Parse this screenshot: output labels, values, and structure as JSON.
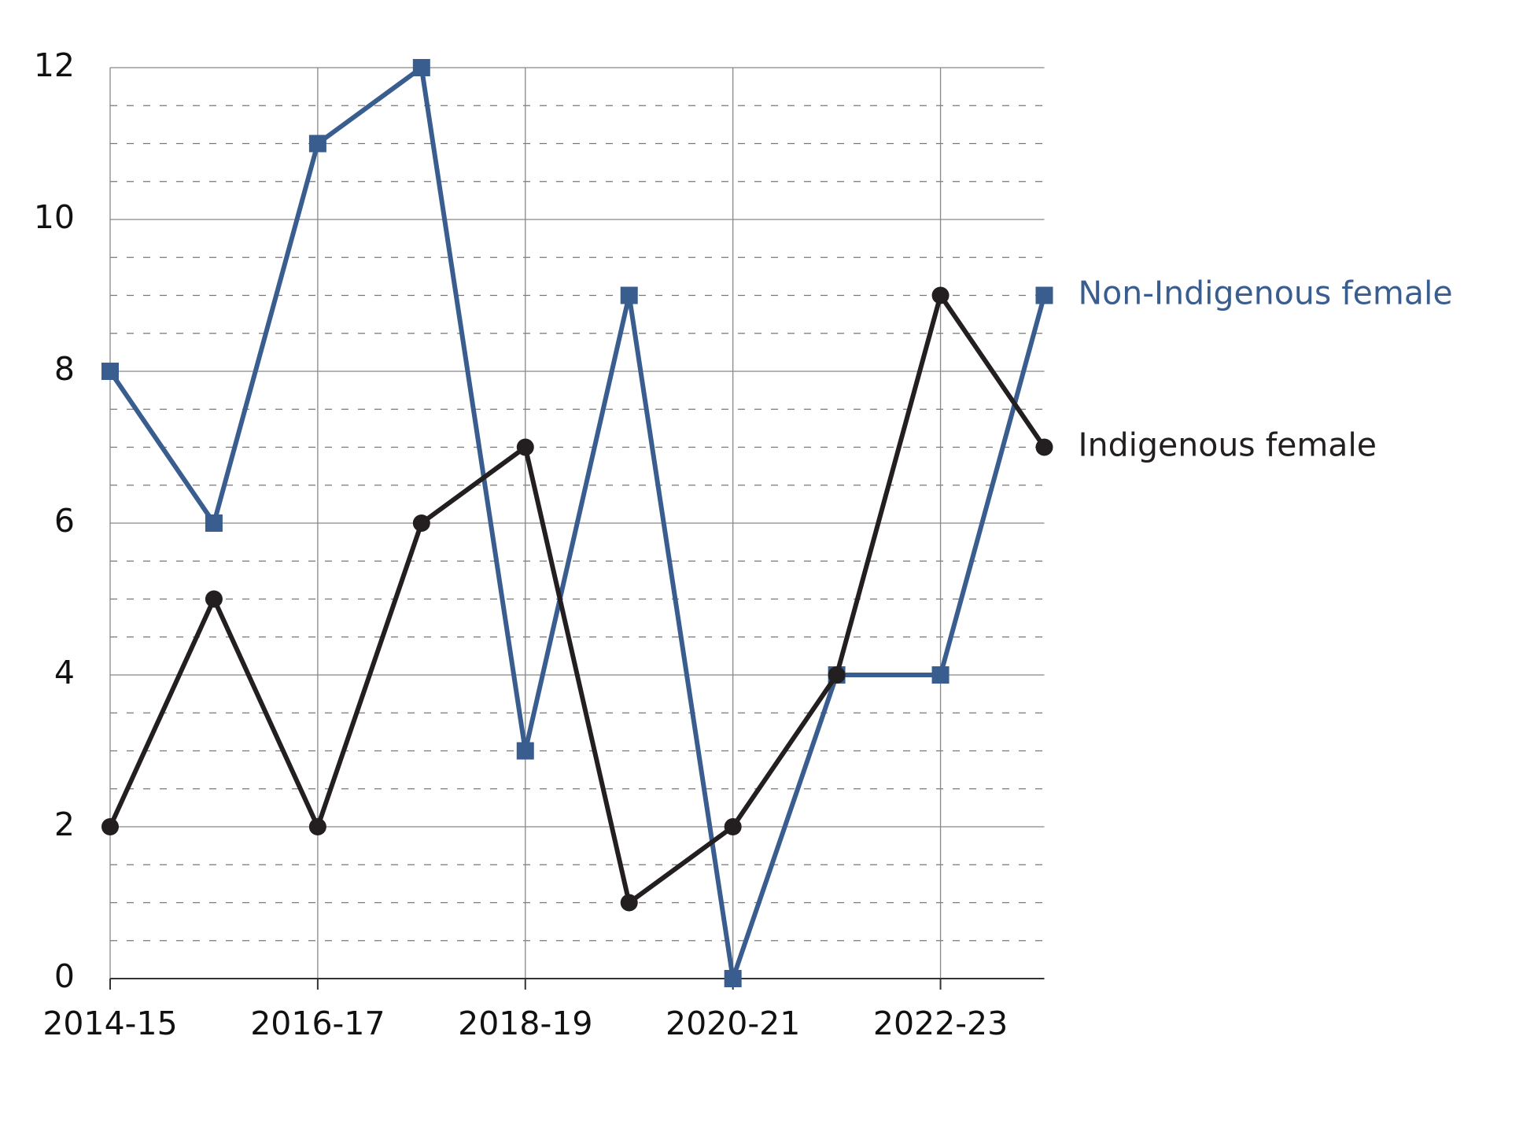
{
  "chart_data": {
    "type": "line",
    "categories": [
      "2014-15",
      null,
      "2016-17",
      null,
      "2018-19",
      null,
      "2020-21",
      null,
      "2022-23",
      null
    ],
    "series": [
      {
        "name": "Non-Indigenous female",
        "color": "#3a5d8f",
        "marker": "square",
        "values": [
          8,
          6,
          11,
          12,
          3,
          9,
          0,
          4,
          4,
          9
        ]
      },
      {
        "name": "Indigenous female",
        "color": "#231f20",
        "marker": "circle",
        "values": [
          2,
          5,
          2,
          6,
          7,
          1,
          2,
          4,
          9,
          7
        ]
      }
    ],
    "ylim": [
      0,
      12
    ],
    "yticks": [
      0,
      2,
      4,
      6,
      8,
      10,
      12
    ],
    "yminorticks": [
      0.5,
      1,
      1.5,
      2.5,
      3,
      3.5,
      4.5,
      5,
      5.5,
      6.5,
      7,
      7.5,
      8.5,
      9,
      9.5,
      10.5,
      11,
      11.5
    ],
    "grid": true,
    "legend": "line-end"
  }
}
